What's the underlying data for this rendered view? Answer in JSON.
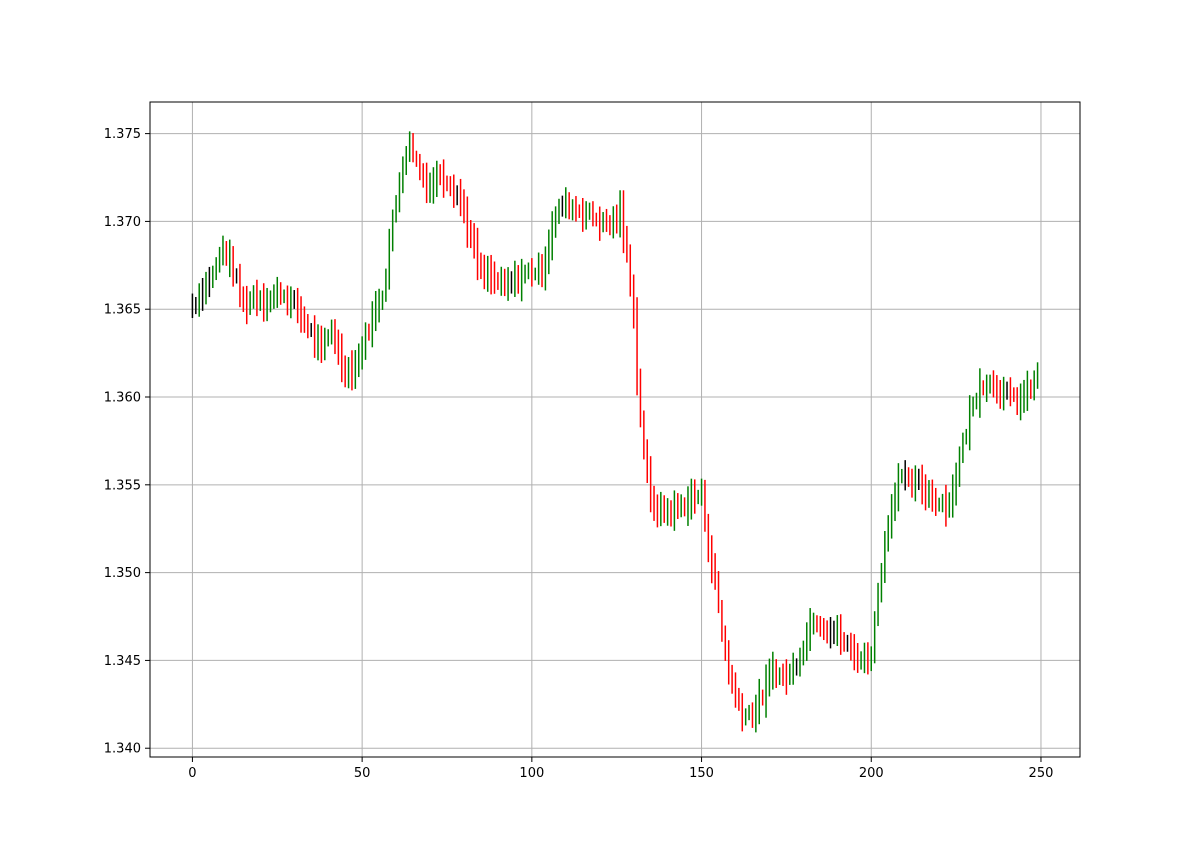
{
  "chart_data": {
    "type": "ohlc-bars",
    "title": "",
    "xlabel": "",
    "ylabel": "",
    "xlim": [
      -12.5,
      261.5
    ],
    "ylim": [
      1.3395,
      1.3768
    ],
    "xticks": [
      0,
      50,
      100,
      150,
      200,
      250
    ],
    "yticks": [
      1.34,
      1.345,
      1.35,
      1.355,
      1.36,
      1.365,
      1.37,
      1.375
    ],
    "xtick_labels": [
      "0",
      "50",
      "100",
      "150",
      "200",
      "250"
    ],
    "ytick_labels": [
      "1.340",
      "1.345",
      "1.350",
      "1.355",
      "1.360",
      "1.365",
      "1.370",
      "1.375"
    ],
    "grid": true,
    "colors": {
      "up": "#008000",
      "down": "#ff0000",
      "neutral": "#000000",
      "grid": "#b0b0b0",
      "axes": "#000000"
    },
    "anchors": [
      [
        0,
        1.3652
      ],
      [
        3,
        1.3662
      ],
      [
        6,
        1.367
      ],
      [
        9,
        1.3685
      ],
      [
        12,
        1.3672
      ],
      [
        15,
        1.3652
      ],
      [
        18,
        1.3658
      ],
      [
        22,
        1.3655
      ],
      [
        26,
        1.366
      ],
      [
        30,
        1.3652
      ],
      [
        34,
        1.364
      ],
      [
        38,
        1.3625
      ],
      [
        41,
        1.364
      ],
      [
        43,
        1.3625
      ],
      [
        45,
        1.3615
      ],
      [
        48,
        1.3618
      ],
      [
        52,
        1.364
      ],
      [
        56,
        1.366
      ],
      [
        59,
        1.37
      ],
      [
        62,
        1.3735
      ],
      [
        64,
        1.3745
      ],
      [
        67,
        1.3728
      ],
      [
        70,
        1.372
      ],
      [
        73,
        1.3728
      ],
      [
        76,
        1.3722
      ],
      [
        79,
        1.3712
      ],
      [
        82,
        1.369
      ],
      [
        85,
        1.367
      ],
      [
        88,
        1.3668
      ],
      [
        92,
        1.3662
      ],
      [
        96,
        1.3668
      ],
      [
        100,
        1.3672
      ],
      [
        103,
        1.3672
      ],
      [
        106,
        1.3698
      ],
      [
        109,
        1.371
      ],
      [
        112,
        1.3708
      ],
      [
        116,
        1.3705
      ],
      [
        120,
        1.37
      ],
      [
        123,
        1.3698
      ],
      [
        126,
        1.3705
      ],
      [
        128,
        1.368
      ],
      [
        130,
        1.365
      ],
      [
        131,
        1.361
      ],
      [
        133,
        1.357
      ],
      [
        135,
        1.354
      ],
      [
        138,
        1.3535
      ],
      [
        141,
        1.3535
      ],
      [
        144,
        1.3538
      ],
      [
        147,
        1.3542
      ],
      [
        150,
        1.3545
      ],
      [
        152,
        1.3515
      ],
      [
        154,
        1.3495
      ],
      [
        156,
        1.3465
      ],
      [
        159,
        1.3435
      ],
      [
        162,
        1.342
      ],
      [
        165,
        1.342
      ],
      [
        168,
        1.343
      ],
      [
        171,
        1.3445
      ],
      [
        174,
        1.344
      ],
      [
        177,
        1.3445
      ],
      [
        180,
        1.346
      ],
      [
        183,
        1.3475
      ],
      [
        186,
        1.347
      ],
      [
        190,
        1.3465
      ],
      [
        194,
        1.3455
      ],
      [
        198,
        1.345
      ],
      [
        200,
        1.3455
      ],
      [
        202,
        1.349
      ],
      [
        205,
        1.353
      ],
      [
        208,
        1.3555
      ],
      [
        211,
        1.355
      ],
      [
        214,
        1.355
      ],
      [
        217,
        1.3545
      ],
      [
        220,
        1.354
      ],
      [
        223,
        1.354
      ],
      [
        226,
        1.3565
      ],
      [
        229,
        1.359
      ],
      [
        232,
        1.3608
      ],
      [
        236,
        1.3608
      ],
      [
        240,
        1.36
      ],
      [
        243,
        1.3598
      ],
      [
        246,
        1.3602
      ],
      [
        249,
        1.3612
      ]
    ]
  }
}
